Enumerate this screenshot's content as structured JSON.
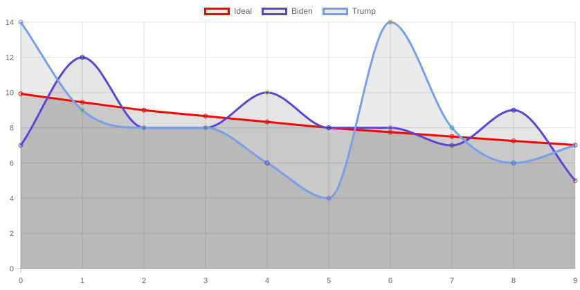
{
  "chart_data": {
    "type": "line",
    "x": [
      0,
      1,
      2,
      3,
      4,
      5,
      6,
      7,
      8,
      9
    ],
    "series": [
      {
        "name": "Ideal",
        "values": [
          9.93,
          9.45,
          9.0,
          8.66,
          8.33,
          8.0,
          7.75,
          7.5,
          7.25,
          7.02
        ],
        "color": "#ff0000",
        "fill": "rgba(0,0,0,0.12)",
        "point_colors": [
          "#e02020",
          "#e02020",
          "#e02020",
          "#e02020",
          "#e02020",
          "#e02020",
          "#e02020",
          "#e02020",
          "#e02020",
          "#e02020"
        ]
      },
      {
        "name": "Biden",
        "values": [
          7,
          12,
          8,
          8,
          10,
          8,
          8,
          7,
          9,
          5
        ],
        "color": "#5a46d6",
        "fill": "rgba(0,0,0,0.10)",
        "point_colors": [
          "#6a58e0",
          "#2b3a8a",
          "#8e3a8a",
          "#3f8f3f",
          "#c8c840",
          "#3b3fd6",
          "#d070b0",
          "#6a6a6a",
          "#3b3fd6",
          "#8a6a50"
        ]
      },
      {
        "name": "Trump",
        "values": [
          14,
          9,
          8,
          8,
          6,
          4,
          14,
          8,
          6,
          7
        ],
        "color": "#7b9ee6",
        "fill": "rgba(0,0,0,0.08)",
        "point_colors": [
          "#7b9ee6",
          "#7ad07a",
          "#7b9ee6",
          "#7b9ee6",
          "#3b3fd6",
          "#9a6ad6",
          "#b0b040",
          "#40b0c0",
          "#3b7ad6",
          "#7b9ee6"
        ]
      }
    ],
    "xlabel": "",
    "ylabel": "",
    "xlim": [
      0,
      9
    ],
    "ylim": [
      0,
      14
    ],
    "yticks": [
      0,
      2,
      4,
      6,
      8,
      10,
      12,
      14
    ],
    "grid": true,
    "legend_position": "top"
  }
}
